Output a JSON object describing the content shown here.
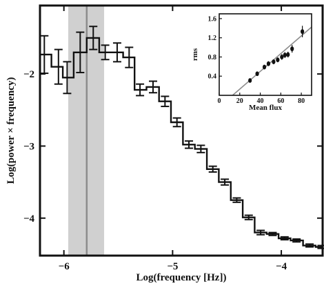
{
  "chart_data": [
    {
      "type": "line",
      "style": "step-with-error-bars",
      "xlabel": "Log(frequency [Hz])",
      "ylabel": "Log(power × frequency)",
      "xlim": [
        -6.22,
        -3.62
      ],
      "ylim": [
        -4.52,
        -1.05
      ],
      "x_ticks": [
        -6,
        -5,
        -4
      ],
      "x_tick_labels": [
        "−6",
        "−5",
        "−4"
      ],
      "y_ticks": [
        -2,
        -3,
        -4
      ],
      "y_tick_labels": [
        "−2",
        "−3",
        "−4"
      ],
      "grid": false,
      "line_color": "#111111",
      "highlight_band": {
        "x_start": -5.96,
        "x_end": -5.63,
        "center": -5.79,
        "band_color": "#d0d0d0",
        "line_color": "#8c8c8c"
      },
      "series": [
        {
          "points": [
            {
              "x": -6.18,
              "y": -1.73,
              "yerr": 0.26
            },
            {
              "x": -6.05,
              "y": -1.9,
              "yerr": 0.24
            },
            {
              "x": -5.97,
              "y": -2.05,
              "yerr": 0.22
            },
            {
              "x": -5.85,
              "y": -1.7,
              "yerr": 0.28
            },
            {
              "x": -5.73,
              "y": -1.5,
              "yerr": 0.16
            },
            {
              "x": -5.62,
              "y": -1.7,
              "yerr": 0.1
            },
            {
              "x": -5.51,
              "y": -1.7,
              "yerr": 0.13
            },
            {
              "x": -5.4,
              "y": -1.77,
              "yerr": 0.14
            },
            {
              "x": -5.3,
              "y": -2.22,
              "yerr": 0.08
            },
            {
              "x": -5.18,
              "y": -2.18,
              "yerr": 0.08
            },
            {
              "x": -5.07,
              "y": -2.38,
              "yerr": 0.07
            },
            {
              "x": -4.96,
              "y": -2.67,
              "yerr": 0.06
            },
            {
              "x": -4.85,
              "y": -2.98,
              "yerr": 0.05
            },
            {
              "x": -4.74,
              "y": -3.04,
              "yerr": 0.05
            },
            {
              "x": -4.63,
              "y": -3.32,
              "yerr": 0.04
            },
            {
              "x": -4.52,
              "y": -3.5,
              "yerr": 0.04
            },
            {
              "x": -4.41,
              "y": -3.75,
              "yerr": 0.03
            },
            {
              "x": -4.3,
              "y": -3.99,
              "yerr": 0.03
            },
            {
              "x": -4.19,
              "y": -4.2,
              "yerr": 0.03
            },
            {
              "x": -4.08,
              "y": -4.22,
              "yerr": 0.02
            },
            {
              "x": -3.97,
              "y": -4.28,
              "yerr": 0.02
            },
            {
              "x": -3.86,
              "y": -4.31,
              "yerr": 0.02
            },
            {
              "x": -3.74,
              "y": -4.38,
              "yerr": 0.02
            },
            {
              "x": -3.63,
              "y": -4.4,
              "yerr": 0.02
            }
          ]
        }
      ]
    },
    {
      "type": "scatter",
      "inset": true,
      "xlabel": "Mean flux",
      "ylabel": "rms",
      "xlim": [
        0,
        90
      ],
      "ylim": [
        0,
        1.7
      ],
      "x_ticks": [
        0,
        20,
        40,
        60,
        80
      ],
      "x_tick_labels": [
        "0",
        "20",
        "40",
        "60",
        "80"
      ],
      "y_ticks": [
        0.4,
        0.8,
        1.2,
        1.6
      ],
      "y_tick_labels": [
        "0.4",
        "0.8",
        "1.2",
        "1.6"
      ],
      "grid": false,
      "fit_line": {
        "intercept_x": 13,
        "slope": 0.0185,
        "color": "#8c8c8c"
      },
      "series": [
        {
          "points": [
            {
              "x": 30,
              "y": 0.31,
              "yerr": 0.03
            },
            {
              "x": 37,
              "y": 0.45,
              "yerr": 0.04
            },
            {
              "x": 44,
              "y": 0.59,
              "yerr": 0.04
            },
            {
              "x": 48,
              "y": 0.66,
              "yerr": 0.05
            },
            {
              "x": 53,
              "y": 0.7,
              "yerr": 0.05
            },
            {
              "x": 57,
              "y": 0.74,
              "yerr": 0.05
            },
            {
              "x": 61,
              "y": 0.8,
              "yerr": 0.06
            },
            {
              "x": 64,
              "y": 0.84,
              "yerr": 0.06
            },
            {
              "x": 67,
              "y": 0.85,
              "yerr": 0.06
            },
            {
              "x": 71,
              "y": 0.97,
              "yerr": 0.08
            },
            {
              "x": 81,
              "y": 1.33,
              "yerr": 0.12
            }
          ]
        }
      ]
    }
  ]
}
